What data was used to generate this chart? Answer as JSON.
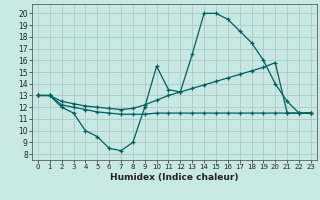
{
  "xlabel": "Humidex (Indice chaleur)",
  "bg_color": "#c8e8e4",
  "grid_color": "#b0c8c8",
  "line_color": "#006060",
  "xlim": [
    -0.5,
    23.5
  ],
  "ylim": [
    7.5,
    20.8
  ],
  "xticks": [
    0,
    1,
    2,
    3,
    4,
    5,
    6,
    7,
    8,
    9,
    10,
    11,
    12,
    13,
    14,
    15,
    16,
    17,
    18,
    19,
    20,
    21,
    22,
    23
  ],
  "yticks": [
    8,
    9,
    10,
    11,
    12,
    13,
    14,
    15,
    16,
    17,
    18,
    19,
    20
  ],
  "series": [
    {
      "x": [
        0,
        1,
        2,
        3,
        4,
        5,
        6,
        7,
        8,
        9,
        10,
        11,
        12,
        13,
        14,
        15,
        16,
        17,
        18,
        19,
        20,
        21,
        22,
        23
      ],
      "y": [
        13.0,
        13.0,
        12.0,
        11.5,
        10.0,
        9.5,
        8.5,
        8.3,
        9.0,
        12.0,
        15.5,
        13.5,
        13.3,
        16.5,
        20.0,
        20.0,
        19.5,
        18.5,
        17.5,
        16.0,
        14.0,
        12.5,
        11.5,
        11.5
      ]
    },
    {
      "x": [
        0,
        1,
        2,
        3,
        4,
        5,
        6,
        7,
        8,
        9,
        10,
        11,
        12,
        13,
        14,
        15,
        16,
        17,
        18,
        19,
        20,
        21,
        22,
        23
      ],
      "y": [
        13.0,
        13.0,
        12.2,
        12.0,
        11.8,
        11.6,
        11.5,
        11.4,
        11.4,
        11.4,
        11.5,
        11.5,
        11.5,
        11.5,
        11.5,
        11.5,
        11.5,
        11.5,
        11.5,
        11.5,
        11.5,
        11.5,
        11.5,
        11.5
      ]
    },
    {
      "x": [
        0,
        1,
        2,
        3,
        4,
        5,
        6,
        7,
        8,
        9,
        10,
        11,
        12,
        13,
        14,
        15,
        16,
        17,
        18,
        19,
        20,
        21,
        22,
        23
      ],
      "y": [
        13.0,
        13.0,
        12.5,
        12.3,
        12.1,
        12.0,
        11.9,
        11.8,
        11.9,
        12.2,
        12.6,
        13.0,
        13.3,
        13.6,
        13.9,
        14.2,
        14.5,
        14.8,
        15.1,
        15.4,
        15.8,
        11.5,
        11.5,
        11.5
      ]
    }
  ]
}
